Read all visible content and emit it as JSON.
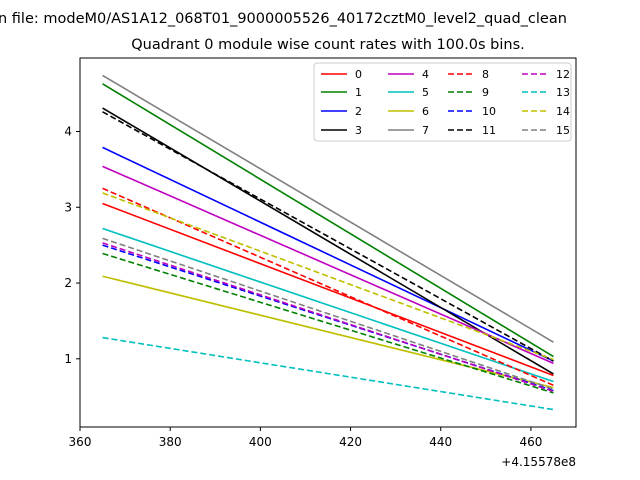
{
  "chart_data": {
    "type": "line",
    "suptitle": "n file: modeM0/AS1A12_068T01_9000005526_40172cztM0_level2_quad_clean",
    "title": "Quadrant 0 module wise count rates with 100.0s bins.",
    "xlabel": "",
    "ylabel": "",
    "x_offset_label": "+4.15578e8",
    "xlim": [
      360,
      470
    ],
    "ylim": [
      0.1,
      4.97
    ],
    "x_ticks": [
      360,
      380,
      400,
      420,
      440,
      460
    ],
    "y_ticks": [
      1,
      2,
      3,
      4
    ],
    "grid": false,
    "legend_placement": "top-right",
    "legend_columns": 4,
    "series": [
      {
        "name": "0",
        "color": "#ff0000",
        "dash": "solid",
        "x": [
          365,
          465
        ],
        "y": [
          3.05,
          0.78
        ]
      },
      {
        "name": "1",
        "color": "#008000",
        "dash": "solid",
        "x": [
          365,
          465
        ],
        "y": [
          4.63,
          1.03
        ]
      },
      {
        "name": "2",
        "color": "#0000ff",
        "dash": "solid",
        "x": [
          365,
          465
        ],
        "y": [
          3.79,
          0.97
        ]
      },
      {
        "name": "3",
        "color": "#000000",
        "dash": "solid",
        "x": [
          365,
          465
        ],
        "y": [
          4.31,
          0.8
        ]
      },
      {
        "name": "4",
        "color": "#bf00bf",
        "dash": "solid",
        "x": [
          365,
          465
        ],
        "y": [
          3.54,
          0.94
        ]
      },
      {
        "name": "5",
        "color": "#00bfbf",
        "dash": "solid",
        "x": [
          365,
          465
        ],
        "y": [
          2.72,
          0.7
        ]
      },
      {
        "name": "6",
        "color": "#bfbf00",
        "dash": "solid",
        "x": [
          365,
          465
        ],
        "y": [
          2.09,
          0.62
        ]
      },
      {
        "name": "7",
        "color": "#808080",
        "dash": "solid",
        "x": [
          365,
          465
        ],
        "y": [
          4.74,
          1.22
        ]
      },
      {
        "name": "8",
        "color": "#ff0000",
        "dash": "dashed",
        "x": [
          365,
          465
        ],
        "y": [
          3.25,
          0.65
        ]
      },
      {
        "name": "9",
        "color": "#008000",
        "dash": "dashed",
        "x": [
          365,
          465
        ],
        "y": [
          2.39,
          0.55
        ]
      },
      {
        "name": "10",
        "color": "#0000ff",
        "dash": "dashed",
        "x": [
          365,
          465
        ],
        "y": [
          2.5,
          0.58
        ]
      },
      {
        "name": "11",
        "color": "#000000",
        "dash": "dashed",
        "x": [
          365,
          465
        ],
        "y": [
          4.26,
          0.97
        ]
      },
      {
        "name": "12",
        "color": "#bf00bf",
        "dash": "dashed",
        "x": [
          365,
          465
        ],
        "y": [
          2.53,
          0.57
        ]
      },
      {
        "name": "13",
        "color": "#00bfbf",
        "dash": "dashed",
        "x": [
          365,
          465
        ],
        "y": [
          1.28,
          0.33
        ]
      },
      {
        "name": "14",
        "color": "#bfbf00",
        "dash": "dashed",
        "x": [
          365,
          465
        ],
        "y": [
          3.19,
          0.99
        ]
      },
      {
        "name": "15",
        "color": "#808080",
        "dash": "dashed",
        "x": [
          365,
          465
        ],
        "y": [
          2.59,
          0.6
        ]
      }
    ]
  }
}
